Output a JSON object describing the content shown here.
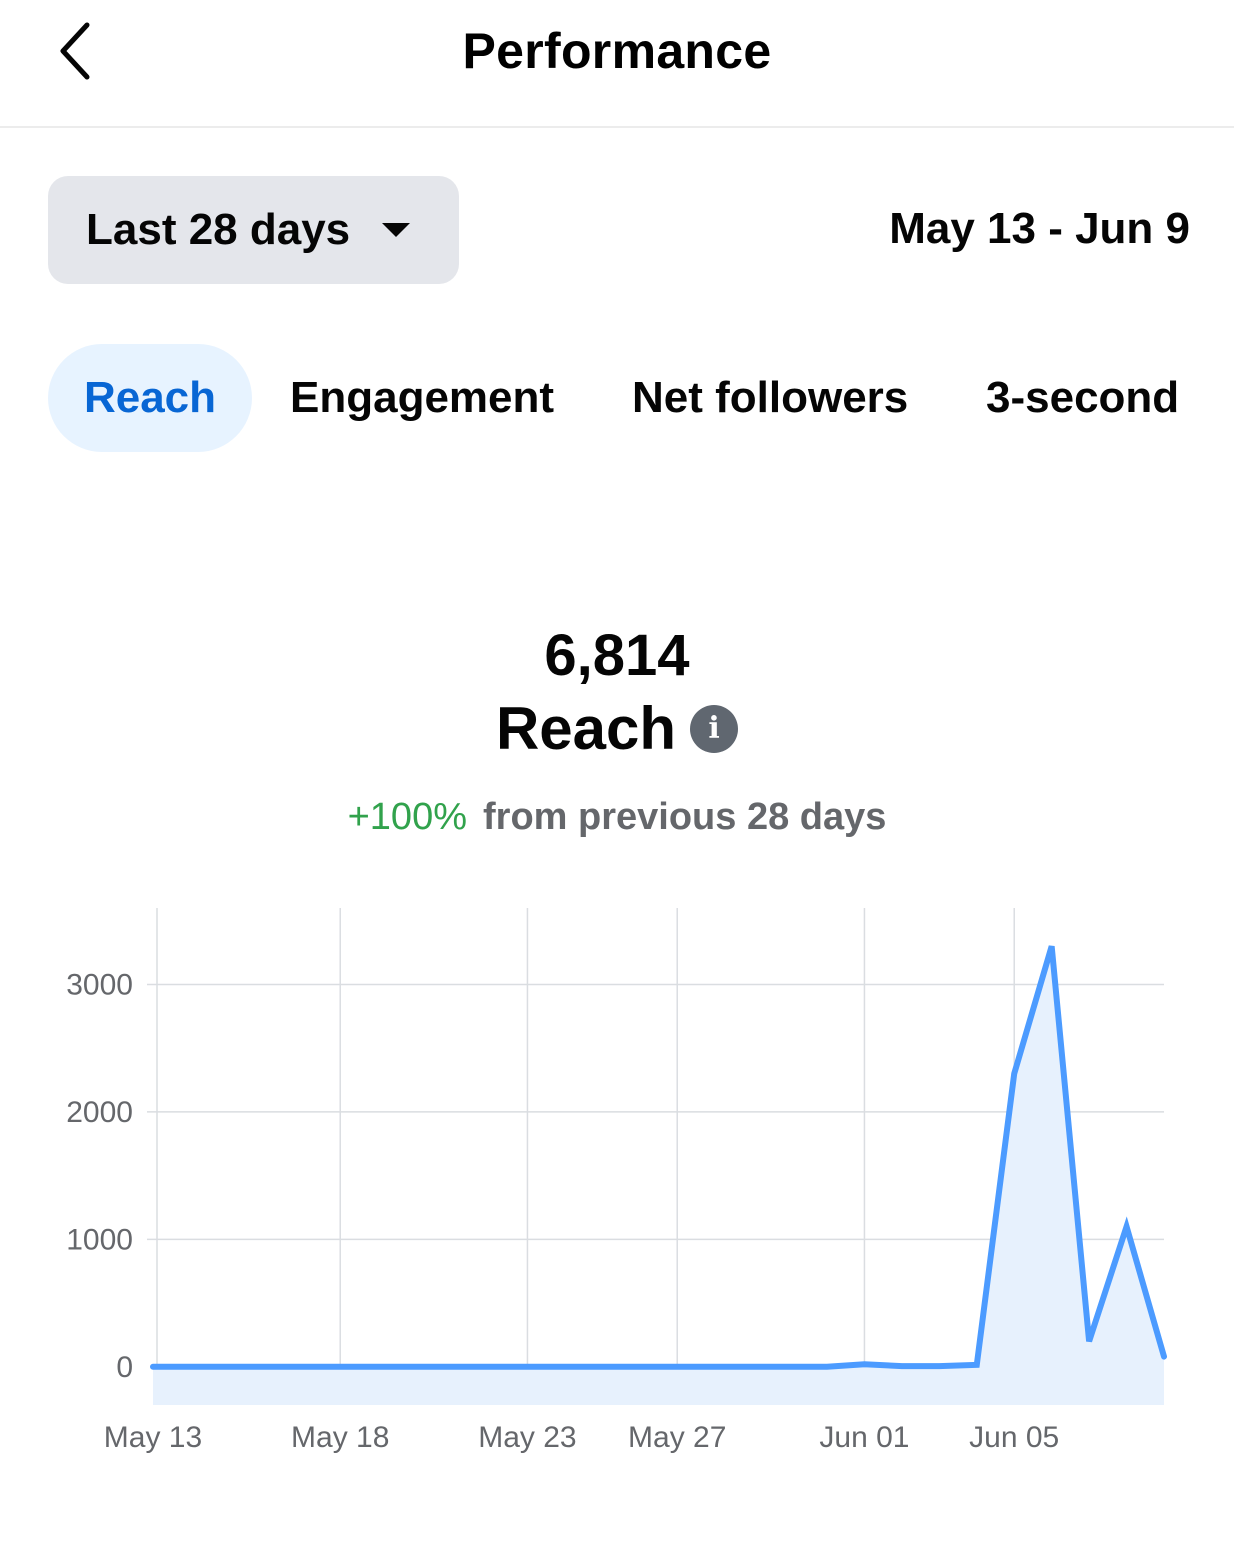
{
  "header": {
    "back_icon": "chevron-left-icon",
    "title": "Performance"
  },
  "controls": {
    "range_label": "Last 28 days",
    "range_caret_icon": "caret-down-icon",
    "date_range": "May 13 - Jun 9"
  },
  "tabs": [
    {
      "label": "Reach",
      "active": true
    },
    {
      "label": "Engagement",
      "active": false
    },
    {
      "label": "Net followers",
      "active": false
    },
    {
      "label": "3-second",
      "active": false
    }
  ],
  "metric": {
    "value": "6,814",
    "label": "Reach",
    "info_icon": "info-icon",
    "change_pct": "+100%",
    "change_text": "from previous 28 days",
    "positive_color": "#31a24c"
  },
  "chart_data": {
    "type": "area",
    "title": "",
    "xlabel": "",
    "ylabel": "",
    "x": [
      "May 13",
      "May 14",
      "May 15",
      "May 16",
      "May 17",
      "May 18",
      "May 19",
      "May 20",
      "May 21",
      "May 22",
      "May 23",
      "May 24",
      "May 25",
      "May 26",
      "May 27",
      "May 28",
      "May 29",
      "May 30",
      "May 31",
      "Jun 01",
      "Jun 02",
      "Jun 03",
      "Jun 04",
      "Jun 05",
      "Jun 06",
      "Jun 07",
      "Jun 08",
      "Jun 09"
    ],
    "series": [
      {
        "values": [
          0,
          0,
          0,
          0,
          0,
          0,
          0,
          0,
          0,
          0,
          0,
          0,
          0,
          0,
          0,
          0,
          0,
          0,
          0,
          20,
          5,
          5,
          15,
          2300,
          3300,
          200,
          1100,
          80
        ],
        "color": "#4c9bff"
      }
    ],
    "x_tick_labels": [
      "May 13",
      "May 18",
      "May 23",
      "May 27",
      "Jun 01",
      "Jun 05"
    ],
    "y_ticks": [
      0,
      1000,
      2000,
      3000
    ],
    "ylim": [
      -300,
      3600
    ],
    "grid": true,
    "legend": "none"
  }
}
